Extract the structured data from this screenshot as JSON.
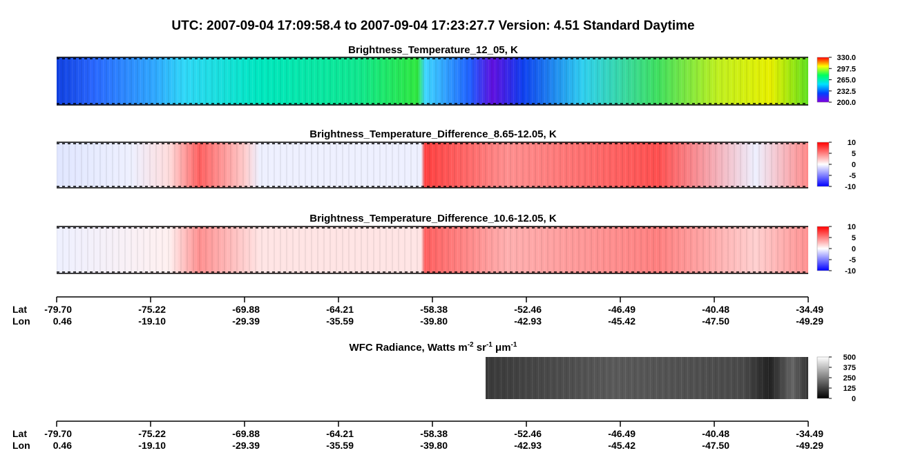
{
  "title": "UTC:  2007-09-04   17:09:58.4  to  2007-09-04   17:23:27.7    Version: 4.51  Standard Daytime",
  "panels": [
    {
      "title": [
        "Brightness_Temperature_12_05, K"
      ],
      "colorbar": [
        "330.0",
        "297.5",
        "265.0",
        "232.5",
        "200.0"
      ]
    },
    {
      "title": [
        "Brightness_Temperature_Difference_8.65-12.05, K"
      ],
      "colorbar": [
        "10",
        "5",
        "0",
        "-5",
        "-10"
      ]
    },
    {
      "title": [
        "Brightness_Temperature_Difference_10.6-12.05, K"
      ],
      "colorbar": [
        "10",
        "5",
        "0",
        "-5",
        "-10"
      ]
    },
    {
      "title": [
        "WFC Radiance, Watts m",
        "-2",
        " sr",
        "-1",
        " μm",
        "-1"
      ],
      "colorbar": [
        "500",
        "375",
        "250",
        "125",
        "0"
      ]
    }
  ],
  "axes": [
    {
      "lat_label": "Lat",
      "lon_label": "Lon",
      "lat": [
        "-79.70",
        "-75.22",
        "-69.88",
        "-64.21",
        "-58.38",
        "-52.46",
        "-46.49",
        "-40.48",
        "-34.49"
      ],
      "lon": [
        "0.46",
        "-19.10",
        "-29.39",
        "-35.59",
        "-39.80",
        "-42.93",
        "-45.42",
        "-47.50",
        "-49.29"
      ]
    },
    {
      "lat_label": "Lat",
      "lon_label": "Lon",
      "lat": [
        "-79.70",
        "-75.22",
        "-69.88",
        "-64.21",
        "-58.38",
        "-52.46",
        "-46.49",
        "-40.48",
        "-34.49"
      ],
      "lon": [
        "0.46",
        "-19.10",
        "-29.39",
        "-35.59",
        "-39.80",
        "-42.93",
        "-45.42",
        "-47.50",
        "-49.29"
      ]
    }
  ]
}
